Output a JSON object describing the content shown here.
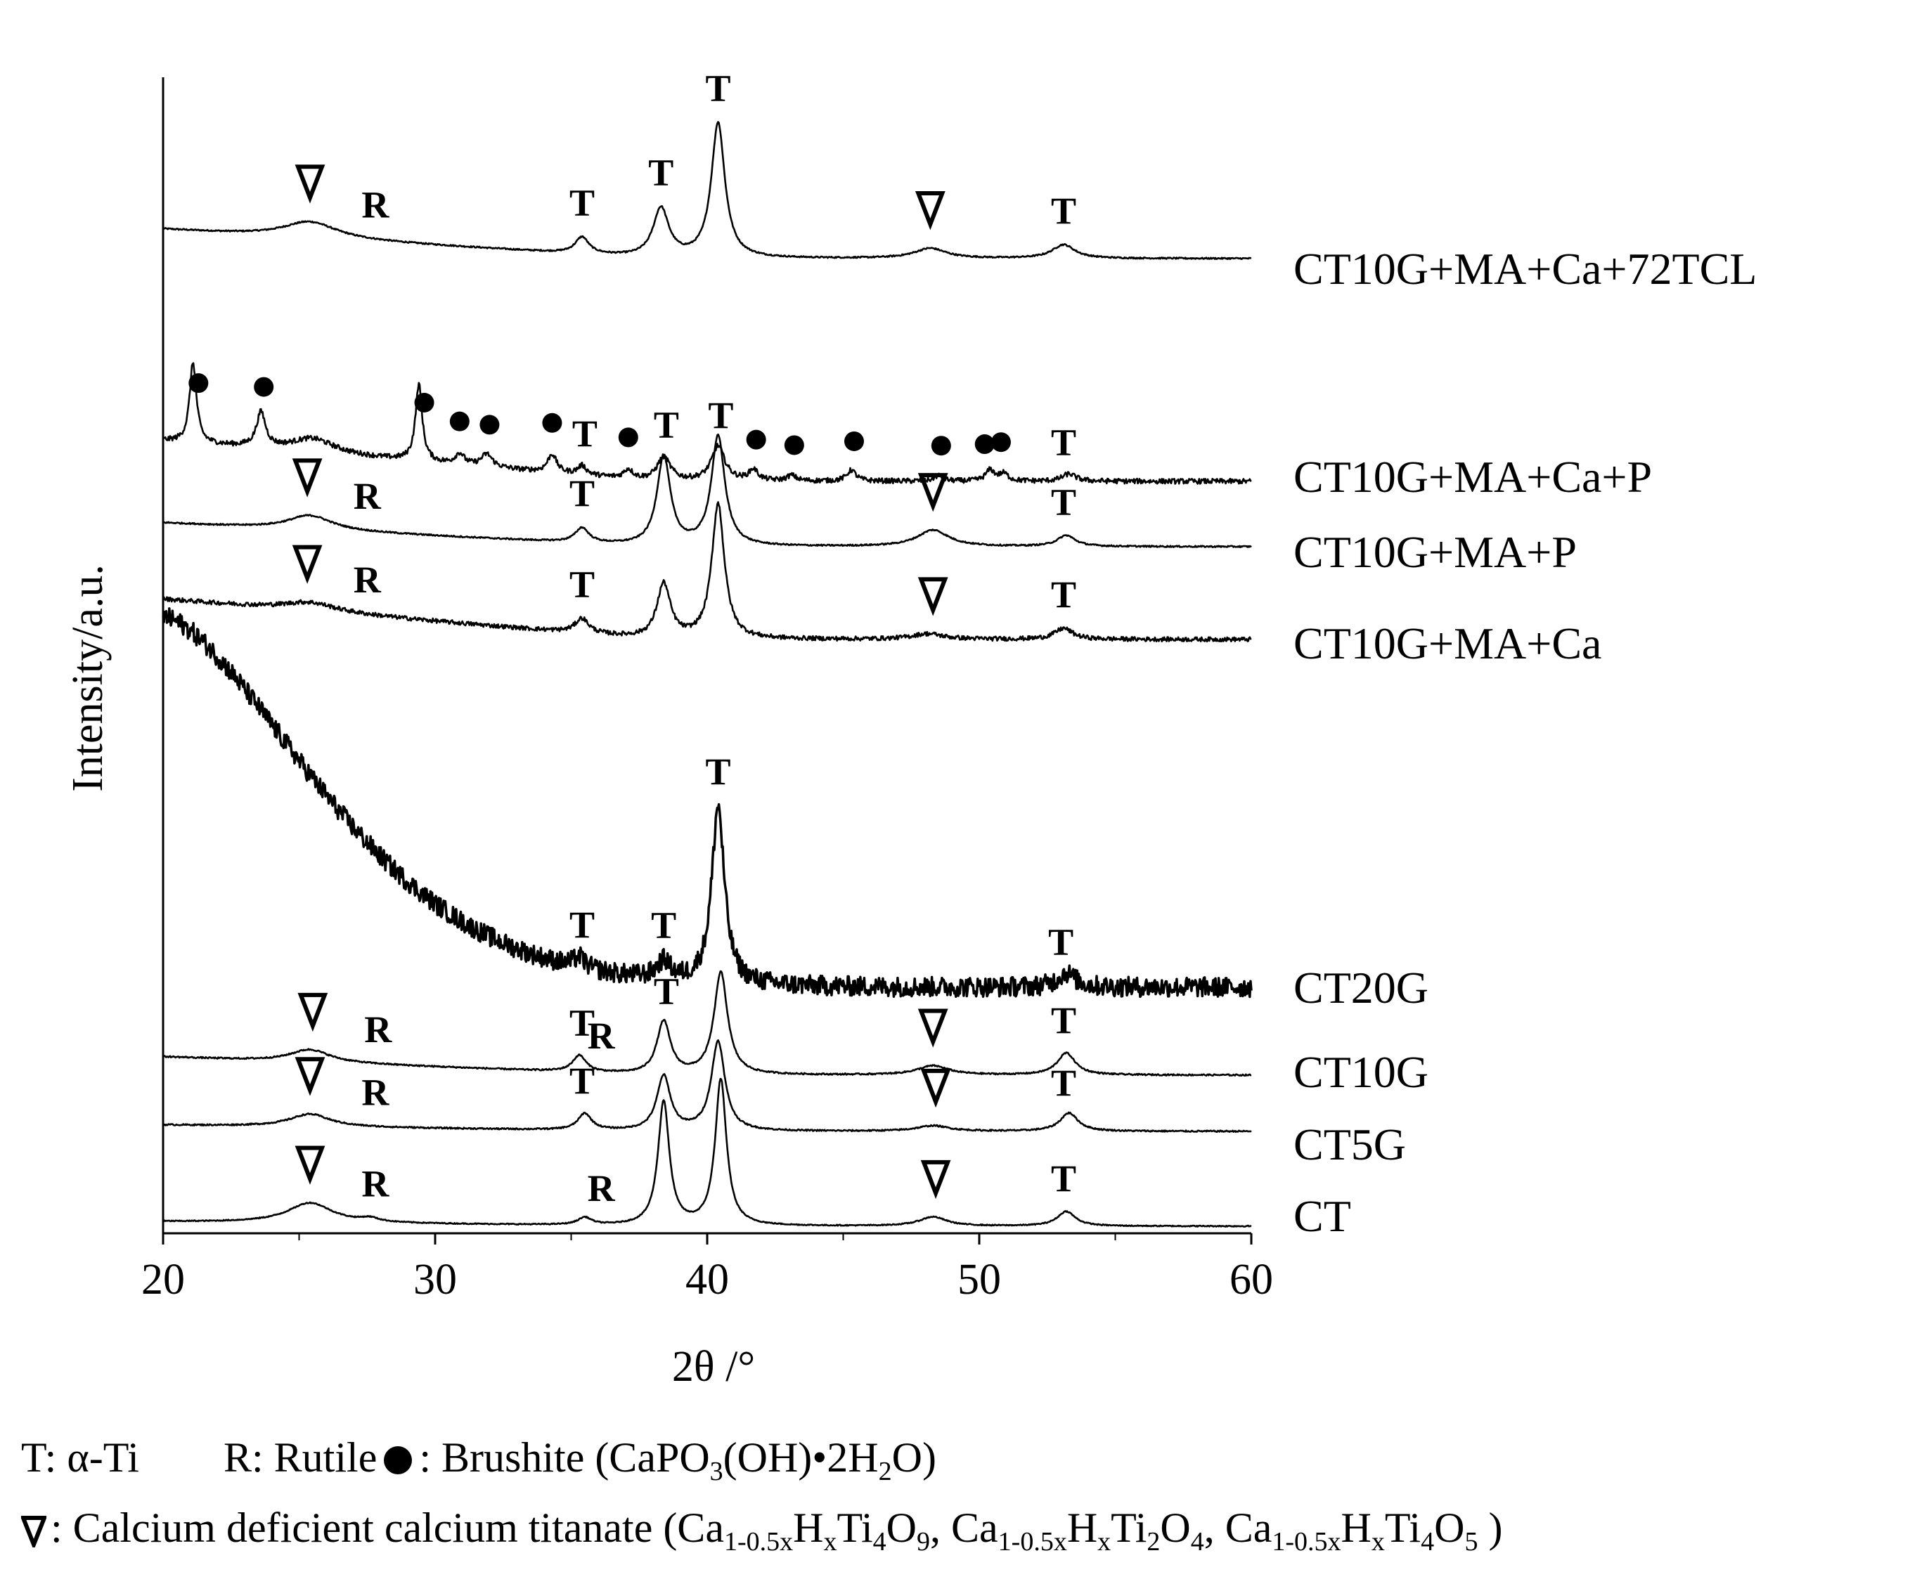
{
  "chart_data": {
    "type": "line",
    "xlabel": "2θ /°",
    "ylabel": "Intensity/a.u.",
    "xlim": [
      20,
      60
    ],
    "x_ticks": [
      "20",
      "30",
      "40",
      "50",
      "60"
    ],
    "peak_markers": [
      {
        "key": "T",
        "text": "T"
      },
      {
        "key": "R",
        "text": "R"
      }
    ],
    "series": [
      {
        "name": "CT10G+MA+Ca+72TCL",
        "baseline": 0.0,
        "peaks": [
          [
            25.4,
            0.9,
            1.2
          ],
          [
            35.4,
            0.9,
            0.3
          ],
          [
            38.3,
            2.7,
            0.35
          ],
          [
            40.4,
            7.4,
            0.3
          ],
          [
            48.2,
            0.55,
            0.7
          ],
          [
            53.1,
            0.75,
            0.5
          ]
        ],
        "slope": 1.6,
        "noise": 0.04,
        "markers": [
          [
            25.4,
            "tri"
          ],
          [
            27.8,
            "R"
          ],
          [
            35.4,
            "T"
          ],
          [
            38.3,
            "T"
          ],
          [
            40.4,
            "T"
          ],
          [
            48.2,
            "tri"
          ],
          [
            53.1,
            "T"
          ]
        ]
      },
      {
        "name": "CT10G+MA+Ca+P",
        "baseline": 0.0,
        "peaks": [
          [
            21.1,
            4.4,
            0.15
          ],
          [
            23.6,
            1.9,
            0.2
          ],
          [
            25.5,
            0.8,
            1.0
          ],
          [
            29.4,
            4.2,
            0.15
          ],
          [
            30.9,
            0.6,
            0.2
          ],
          [
            31.9,
            0.7,
            0.25
          ],
          [
            34.3,
            1.0,
            0.2
          ],
          [
            35.4,
            0.5,
            0.2
          ],
          [
            37.1,
            0.5,
            0.2
          ],
          [
            38.4,
            1.3,
            0.3
          ],
          [
            40.4,
            1.9,
            0.3
          ],
          [
            41.7,
            0.6,
            0.2
          ],
          [
            43.1,
            0.3,
            0.2
          ],
          [
            45.3,
            0.6,
            0.2
          ],
          [
            48.5,
            0.3,
            0.2
          ],
          [
            50.4,
            0.6,
            0.2
          ],
          [
            50.9,
            0.4,
            0.2
          ],
          [
            53.3,
            0.4,
            0.3
          ]
        ],
        "slope": 2.2,
        "noise": 0.14,
        "markers": [
          [
            21.3,
            "dot"
          ],
          [
            23.7,
            "dot"
          ],
          [
            29.6,
            "dot"
          ],
          [
            30.9,
            "dot"
          ],
          [
            32.0,
            "dot"
          ],
          [
            34.3,
            "dot"
          ],
          [
            35.5,
            "T"
          ],
          [
            37.1,
            "dot"
          ],
          [
            38.5,
            "T"
          ],
          [
            40.5,
            "T"
          ],
          [
            41.8,
            "dot"
          ],
          [
            43.2,
            "dot"
          ],
          [
            45.4,
            "dot"
          ],
          [
            48.6,
            "dot"
          ],
          [
            50.2,
            "dot"
          ],
          [
            50.8,
            "dot"
          ],
          [
            53.1,
            "T"
          ]
        ]
      },
      {
        "name": "CT10G+MA+P",
        "baseline": 0.0,
        "peaks": [
          [
            25.4,
            0.8,
            1.0
          ],
          [
            35.4,
            0.8,
            0.3
          ],
          [
            38.4,
            4.9,
            0.3
          ],
          [
            40.4,
            6.0,
            0.3
          ],
          [
            48.3,
            0.9,
            0.7
          ],
          [
            53.2,
            0.6,
            0.4
          ]
        ],
        "slope": 1.3,
        "noise": 0.04,
        "markers": [
          [
            25.3,
            "tri"
          ],
          [
            27.5,
            "R"
          ],
          [
            35.4,
            "T"
          ],
          [
            48.3,
            "tri"
          ],
          [
            53.1,
            "T"
          ]
        ]
      },
      {
        "name": "CT10G+MA+Ca",
        "baseline": 0.0,
        "peaks": [
          [
            25.4,
            0.5,
            1.2
          ],
          [
            35.4,
            0.8,
            0.3
          ],
          [
            38.4,
            3.0,
            0.3
          ],
          [
            40.4,
            7.4,
            0.28
          ],
          [
            48.1,
            0.3,
            0.7
          ],
          [
            53.1,
            0.6,
            0.4
          ]
        ],
        "slope": 2.2,
        "noise": 0.12,
        "markers": [
          [
            25.3,
            "tri"
          ],
          [
            27.5,
            "R"
          ],
          [
            35.4,
            "T"
          ],
          [
            48.3,
            "tri"
          ],
          [
            53.1,
            "T"
          ]
        ]
      },
      {
        "name": "CT20G",
        "baseline": 0.0,
        "peaks": [
          [
            35.3,
            0.3,
            0.25
          ],
          [
            38.4,
            0.5,
            0.3
          ],
          [
            40.4,
            5.0,
            0.28
          ],
          [
            53.2,
            0.4,
            0.4
          ]
        ],
        "decay": 10.4,
        "decay_len": 7.8,
        "noise": 0.28,
        "markers": [
          [
            35.4,
            "T"
          ],
          [
            38.4,
            "T"
          ],
          [
            40.4,
            "T"
          ],
          [
            53.0,
            "T"
          ]
        ]
      },
      {
        "name": "CT10G",
        "baseline": 0.0,
        "peaks": [
          [
            25.4,
            0.7,
            0.9
          ],
          [
            35.3,
            0.9,
            0.3
          ],
          [
            38.4,
            2.9,
            0.3
          ],
          [
            40.5,
            5.6,
            0.3
          ],
          [
            48.3,
            0.5,
            0.7
          ],
          [
            53.2,
            1.2,
            0.4
          ]
        ],
        "slope": 1.0,
        "noise": 0.04,
        "markers": [
          [
            25.5,
            "tri"
          ],
          [
            27.9,
            "R"
          ],
          [
            35.4,
            "T"
          ],
          [
            36.1,
            "R"
          ],
          [
            38.5,
            "T"
          ],
          [
            48.3,
            "tri"
          ],
          [
            53.1,
            "T"
          ]
        ]
      },
      {
        "name": "CT5G",
        "baseline": 0.0,
        "peaks": [
          [
            25.4,
            0.7,
            0.9
          ],
          [
            35.5,
            0.9,
            0.3
          ],
          [
            38.4,
            3.0,
            0.3
          ],
          [
            40.4,
            4.9,
            0.3
          ],
          [
            48.3,
            0.3,
            0.7
          ],
          [
            53.3,
            1.0,
            0.4
          ]
        ],
        "slope": 0.35,
        "noise": 0.04,
        "markers": [
          [
            25.4,
            "tri"
          ],
          [
            27.8,
            "R"
          ],
          [
            35.4,
            "T"
          ],
          [
            48.4,
            "tri"
          ],
          [
            53.1,
            "T"
          ]
        ]
      },
      {
        "name": "CT",
        "baseline": 0.0,
        "peaks": [
          [
            25.4,
            1.1,
            1.0
          ],
          [
            27.6,
            0.2,
            0.4
          ],
          [
            35.5,
            0.4,
            0.3
          ],
          [
            38.4,
            6.8,
            0.25
          ],
          [
            40.5,
            8.0,
            0.25
          ],
          [
            48.3,
            0.5,
            0.6
          ],
          [
            53.2,
            0.8,
            0.4
          ]
        ],
        "slope": 0.25,
        "noise": 0.03,
        "markers": [
          [
            25.4,
            "tri"
          ],
          [
            27.8,
            "R"
          ],
          [
            36.1,
            "R"
          ],
          [
            48.4,
            "tri"
          ],
          [
            53.1,
            "T"
          ]
        ]
      }
    ]
  },
  "legend": {
    "t_label": "T: α-Ti",
    "r_label": "R: Rutile",
    "brushite_label": ": Brushite (CaPO",
    "brushite_sub1": "3",
    "brushite_mid": "(OH)•2H",
    "brushite_sub2": "2",
    "brushite_end": "O)",
    "titanate_label": ": Calcium  deficient  calcium  titanate (Ca",
    "ca_sub": "1-0.5x",
    "h": "H",
    "x_sub": "x",
    "ti": "Ti",
    "sub4": "4",
    "sub2": "2",
    "o": "O",
    "sub9": "9",
    "sub5": "5",
    "sep": ",  Ca",
    "close": " )"
  }
}
